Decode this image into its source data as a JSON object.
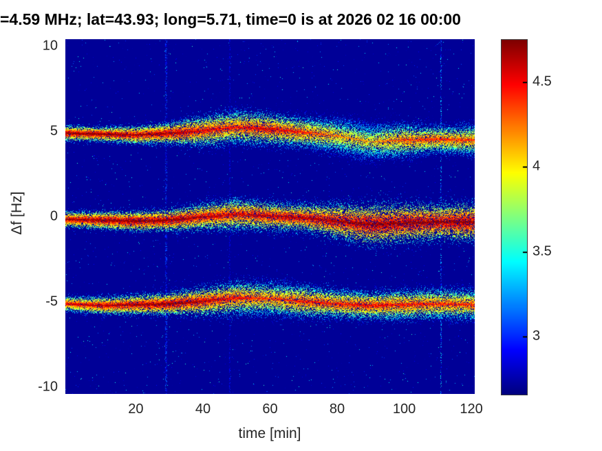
{
  "chart_data": {
    "type": "heatmap",
    "title": "=4.59 MHz;  lat=43.93; long=5.71, time=0 is at 2026 02 16 00:00",
    "xlabel": "time [min]",
    "ylabel": "Δf [Hz]",
    "xlim": [
      -1,
      121
    ],
    "ylim": [
      -10.4,
      10.4
    ],
    "x_ticks": [
      20,
      40,
      60,
      80,
      100,
      120
    ],
    "y_ticks": [
      10,
      5,
      0,
      -5,
      -10
    ],
    "colorbar": {
      "min": 2.66,
      "max": 4.75,
      "ticks": [
        4.5,
        4,
        3.5,
        3
      ],
      "colormap": "jet"
    },
    "background_value": 2.71,
    "x_grid": [
      0,
      10,
      20,
      30,
      40,
      50,
      60,
      70,
      80,
      90,
      100,
      110,
      120
    ],
    "bands": [
      {
        "name": "upper-doppler-line-+5Hz",
        "center": [
          4.9,
          4.85,
          4.8,
          4.9,
          5.05,
          5.25,
          5.15,
          4.95,
          4.75,
          4.4,
          4.5,
          4.55,
          4.5
        ],
        "width": [
          0.2,
          0.2,
          0.25,
          0.3,
          0.45,
          0.5,
          0.45,
          0.45,
          0.55,
          0.6,
          0.5,
          0.4,
          0.45
        ],
        "amp": [
          4.6,
          4.6,
          4.55,
          4.55,
          4.4,
          4.35,
          4.45,
          4.3,
          4.1,
          4.0,
          4.25,
          4.3,
          4.25
        ]
      },
      {
        "name": "carrier-line-0Hz",
        "center": [
          -0.15,
          -0.2,
          -0.25,
          -0.2,
          0.0,
          0.15,
          0.05,
          -0.05,
          -0.25,
          -0.45,
          -0.35,
          -0.3,
          -0.3
        ],
        "width": [
          0.22,
          0.25,
          0.28,
          0.3,
          0.38,
          0.45,
          0.4,
          0.4,
          0.5,
          0.6,
          0.55,
          0.5,
          0.55
        ],
        "amp": [
          4.55,
          4.6,
          4.6,
          4.6,
          4.5,
          4.45,
          4.5,
          4.5,
          4.55,
          4.6,
          4.6,
          4.6,
          4.6
        ]
      },
      {
        "name": "lower-doppler-line--5Hz",
        "center": [
          -5.1,
          -5.2,
          -5.15,
          -5.1,
          -4.95,
          -4.75,
          -4.8,
          -4.95,
          -5.1,
          -5.2,
          -5.15,
          -5.1,
          -5.15
        ],
        "width": [
          0.22,
          0.25,
          0.28,
          0.3,
          0.4,
          0.5,
          0.5,
          0.48,
          0.42,
          0.4,
          0.45,
          0.45,
          0.45
        ],
        "amp": [
          4.4,
          4.5,
          4.55,
          4.6,
          4.5,
          4.35,
          4.25,
          4.35,
          4.35,
          4.4,
          4.35,
          4.3,
          4.3
        ]
      }
    ],
    "vertical_artifacts": [
      {
        "t": 29,
        "strength": 0.5
      },
      {
        "t": 48,
        "strength": 0.3
      },
      {
        "t": 111,
        "strength": 0.8
      }
    ]
  }
}
